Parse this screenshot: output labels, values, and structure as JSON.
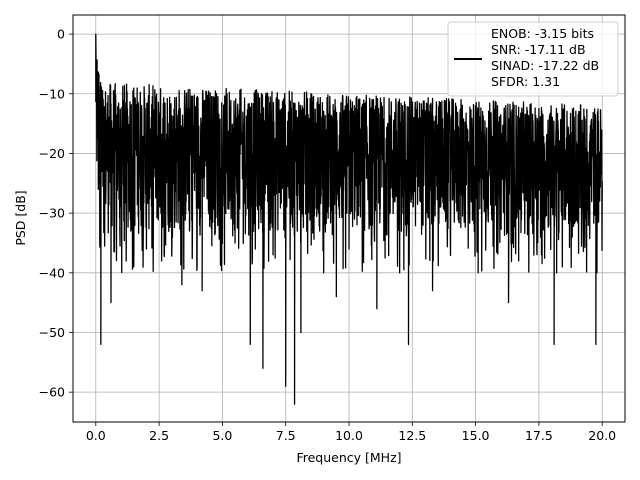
{
  "chart_data": {
    "type": "line",
    "title": "",
    "xlabel": "Frequency [MHz]",
    "ylabel": "PSD [dB]",
    "xlim": [
      -0.9,
      20.9
    ],
    "ylim": [
      -65,
      3.2
    ],
    "x_ticks": [
      0.0,
      2.5,
      5.0,
      7.5,
      10.0,
      12.5,
      15.0,
      17.5,
      20.0
    ],
    "x_tick_labels": [
      "0.0",
      "2.5",
      "5.0",
      "7.5",
      "10.0",
      "12.5",
      "15.0",
      "17.5",
      "20.0"
    ],
    "y_ticks": [
      0,
      -10,
      -20,
      -30,
      -40,
      -50,
      -60
    ],
    "y_tick_labels": [
      "0",
      "−10",
      "−20",
      "−30",
      "−40",
      "−50",
      "−60"
    ],
    "grid": true,
    "legend_position": "top-right",
    "legend_entries": [
      "ENOB: -3.15 bits",
      "SNR: -17.11 dB",
      "SINAD: -17.22 dB",
      "SFDR: 1.31"
    ],
    "series": [
      {
        "name": "ENOB: -3.15 bits\nSNR: -17.11 dB\nSINAD: -17.22 dB\nSFDR: 1.31",
        "color": "#000000",
        "x_range": [
          0,
          20
        ],
        "envelope_estimate": {
          "peak": [
            0,
            0
          ],
          "upper_band_start_db": -8,
          "upper_band_end_db": -12,
          "lower_band_db": -34
        },
        "x": [
          0.0,
          0.05,
          0.1,
          0.2,
          0.25,
          0.6,
          0.95,
          1.5,
          2.0,
          2.6,
          3.4,
          3.7,
          4.2,
          4.5,
          5.5,
          6.1,
          6.3,
          6.6,
          7.0,
          7.5,
          7.85,
          8.1,
          9.0,
          9.5,
          10.0,
          11.1,
          12.0,
          12.35,
          13.3,
          14.0,
          15.1,
          16.3,
          16.7,
          17.6,
          18.1,
          18.2,
          19.0,
          19.75,
          20.0
        ],
        "values": [
          0,
          -8,
          -26,
          -52,
          -23,
          -45,
          -33,
          -39,
          -36,
          -38,
          -42,
          -33,
          -43,
          -30,
          -35,
          -52,
          -36,
          -56,
          -37,
          -59,
          -62,
          -50,
          -40,
          -44,
          -36,
          -46,
          -40,
          -52,
          -43,
          -33,
          -40,
          -45,
          -38,
          -37,
          -52,
          -40,
          -30,
          -52,
          -28
        ]
      }
    ]
  }
}
